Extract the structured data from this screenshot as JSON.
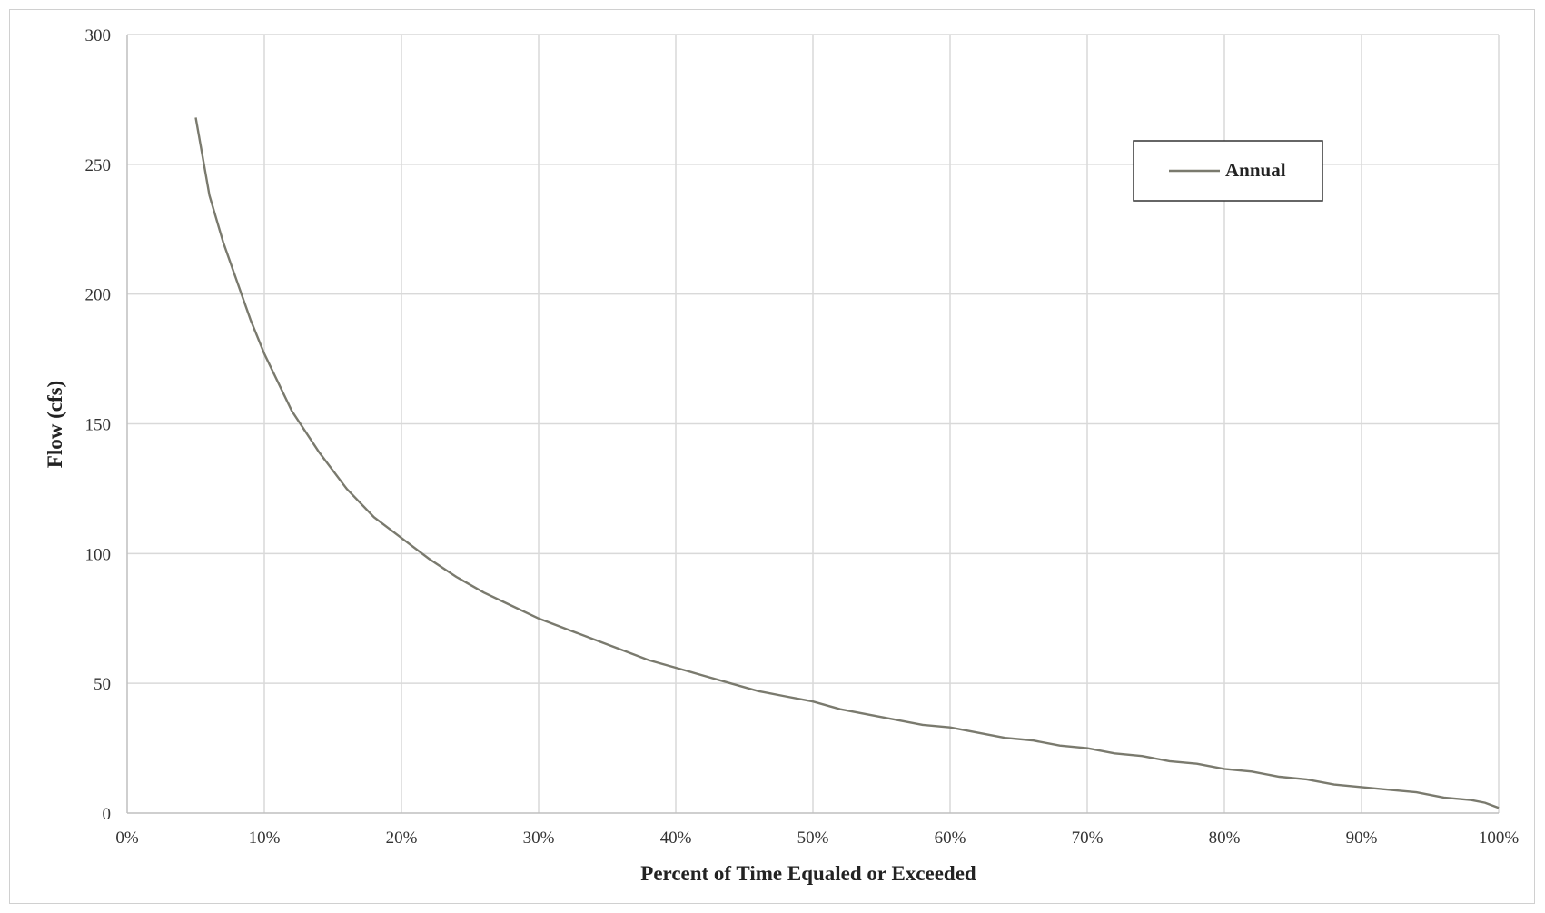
{
  "chart_data": {
    "type": "line",
    "xlabel": "Percent of Time Equaled or Exceeded",
    "ylabel": "Flow (cfs)",
    "xlim": [
      0,
      100
    ],
    "ylim": [
      0,
      300
    ],
    "x_ticks": [
      "0%",
      "10%",
      "20%",
      "30%",
      "40%",
      "50%",
      "60%",
      "70%",
      "80%",
      "90%",
      "100%"
    ],
    "y_ticks": [
      "0",
      "50",
      "100",
      "150",
      "200",
      "250",
      "300"
    ],
    "grid": true,
    "legend_position": "top-right",
    "series": [
      {
        "name": "Annual",
        "color": "#7a7a6e",
        "x": [
          5,
          6,
          7,
          8,
          9,
          10,
          12,
          14,
          16,
          18,
          20,
          22,
          24,
          26,
          28,
          30,
          32,
          34,
          36,
          38,
          40,
          42,
          44,
          46,
          48,
          50,
          52,
          54,
          56,
          58,
          60,
          62,
          64,
          66,
          68,
          70,
          72,
          74,
          76,
          78,
          80,
          82,
          84,
          86,
          88,
          90,
          92,
          94,
          96,
          98,
          99,
          100
        ],
        "values": [
          268,
          238,
          220,
          205,
          190,
          177,
          155,
          139,
          125,
          114,
          106,
          98,
          91,
          85,
          80,
          75,
          71,
          67,
          63,
          59,
          56,
          53,
          50,
          47,
          45,
          43,
          40,
          38,
          36,
          34,
          33,
          31,
          29,
          28,
          26,
          25,
          23,
          22,
          20,
          19,
          17,
          16,
          14,
          13,
          11,
          10,
          9,
          8,
          6,
          5,
          4,
          2
        ]
      }
    ]
  }
}
